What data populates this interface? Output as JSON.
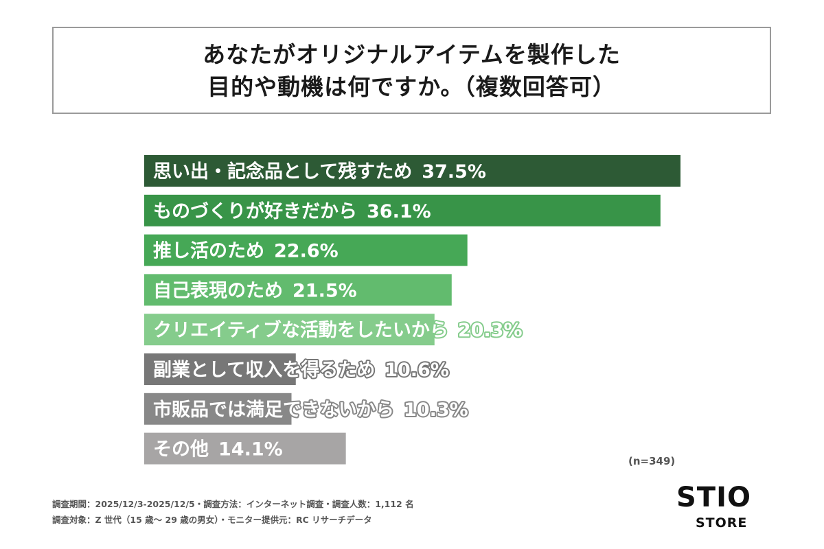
{
  "title": {
    "line1": "あなたがオリジナルアイテムを製作した",
    "line2": "目的や動機は何ですか。（複数回答可）"
  },
  "chart_data": {
    "type": "bar",
    "orientation": "horizontal",
    "categories": [
      "思い出・記念品として残すため",
      "ものづくりが好きだから",
      "推し活のため",
      "自己表現のため",
      "クリエイティブな活動をしたいから",
      "副業として収入を得るため",
      "市販品では満足できないから",
      "その他"
    ],
    "values": [
      37.5,
      36.1,
      22.6,
      21.5,
      20.3,
      10.6,
      10.3,
      14.1
    ],
    "value_labels": [
      "37.5%",
      "36.1%",
      "22.6%",
      "21.5%",
      "20.3%",
      "10.6%",
      "10.3%",
      "14.1%"
    ],
    "colors": [
      "#2d5a35",
      "#389448",
      "#46a856",
      "#62bb6e",
      "#85cc8c",
      "#777777",
      "#888888",
      "#a7a5a5"
    ],
    "xlim": [
      0,
      37.5
    ]
  },
  "n_label": "(n=349)",
  "footer": {
    "line1": "調査期間：2025/12/3-2025/12/5・調査方法：インターネット調査・調査人数：1,112 名",
    "line2": "調査対象：Z 世代（15 歳〜 29 歳の男女）・モニター提供元：RC リサーチデータ"
  },
  "logo": {
    "top": "STIO",
    "bottom": "STORE"
  }
}
